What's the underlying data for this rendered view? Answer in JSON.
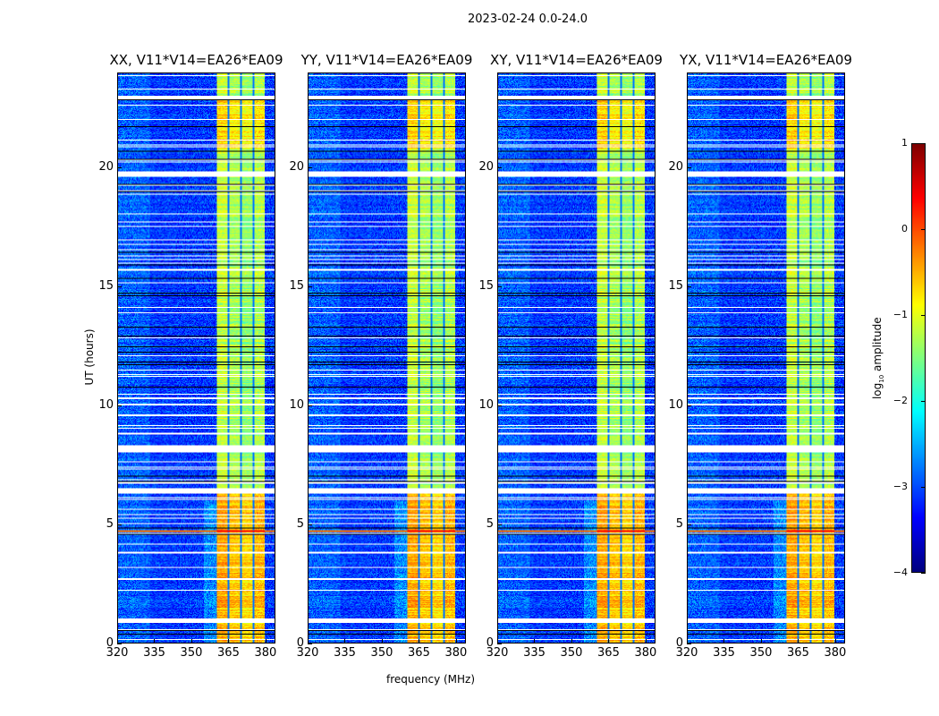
{
  "figure": {
    "title": "2023-02-24 0.0-24.0"
  },
  "chart_data": {
    "type": "heatmap",
    "title": "2023-02-24 0.0-24.0",
    "xlabel": "frequency (MHz)",
    "ylabel": "UT (hours)",
    "xlim": [
      320,
      384
    ],
    "ylim": [
      0,
      24
    ],
    "xticks": [
      "320",
      "335",
      "350",
      "365",
      "380"
    ],
    "xtick_values": [
      320,
      335,
      350,
      365,
      380
    ],
    "yticks": [
      "0",
      "5",
      "10",
      "15",
      "20"
    ],
    "ytick_values": [
      0,
      5,
      10,
      15,
      20
    ],
    "panels": [
      {
        "title": "XX, V11*V14=EA26*EA09"
      },
      {
        "title": "YY, V11*V14=EA26*EA09"
      },
      {
        "title": "XY, V11*V14=EA26*EA09"
      },
      {
        "title": "YX, V11*V14=EA26*EA09"
      }
    ],
    "colorbar": {
      "label": "log10 amplitude",
      "label_main": "log",
      "label_sub": "10",
      "label_rest": " amplitude",
      "colormap": "jet",
      "range": [
        -4,
        1
      ],
      "ticks": [
        "1",
        "0",
        "−1",
        "−2",
        "−3",
        "−4"
      ],
      "tick_values": [
        1,
        0,
        -1,
        -2,
        -3,
        -4
      ]
    },
    "signal_band_mhz": [
      360.5,
      380
    ],
    "band_gaps_mhz": [
      365.3,
      370.4,
      375.4
    ],
    "flagged_hours": [
      [
        0.82,
        1.03
      ],
      [
        6.3,
        6.5
      ],
      [
        8.0,
        8.3
      ],
      [
        19.72,
        19.85
      ],
      [
        22.9,
        23.05
      ]
    ],
    "rfi_line_hour": 4.7,
    "background_level": -3.1,
    "band_level_0_6h": -0.6,
    "band_level_6_24h": -1.3
  }
}
